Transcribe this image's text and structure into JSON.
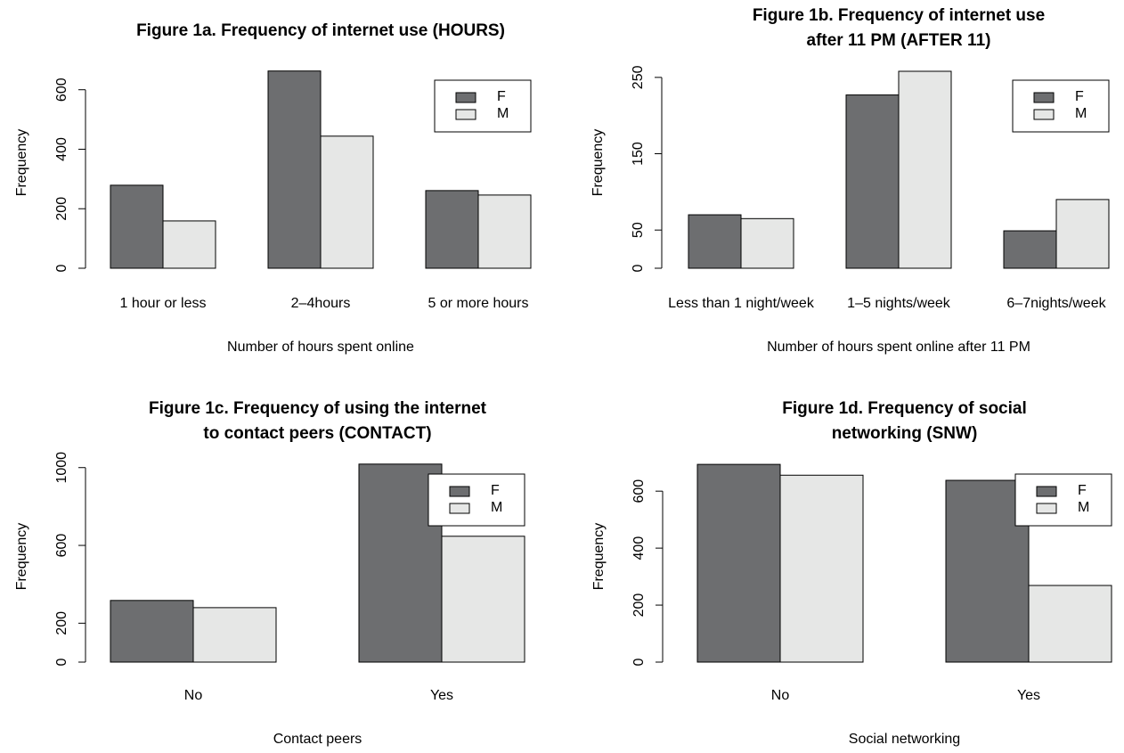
{
  "chart_data": [
    {
      "type": "bar",
      "title": [
        "Figure 1a. Frequency of internet use (HOURS)"
      ],
      "xlabel": "Number of hours spent online",
      "ylabel": "Frequency",
      "categories": [
        "1 hour or less",
        "2–4hours",
        "5 or more hours"
      ],
      "series": [
        {
          "name": "F",
          "color": "#6d6e70",
          "values": [
            279,
            663,
            261
          ]
        },
        {
          "name": "M",
          "color": "#e6e7e6",
          "values": [
            159,
            444,
            246
          ]
        }
      ],
      "ylim": [
        0,
        680
      ],
      "yticks": [
        0,
        200,
        400,
        600
      ],
      "legend": "topright"
    },
    {
      "type": "bar",
      "title": [
        "Figure 1b. Frequency of internet use",
        "after 11 PM (AFTER 11)"
      ],
      "xlabel": "Number of hours spent online after 11 PM",
      "ylabel": "Frequency",
      "categories": [
        "Less than 1 night/week",
        "1–5 nights/week",
        "6–7nights/week"
      ],
      "series": [
        {
          "name": "F",
          "color": "#6d6e70",
          "values": [
            70,
            227,
            49
          ]
        },
        {
          "name": "M",
          "color": "#e6e7e6",
          "values": [
            65,
            258,
            90
          ]
        }
      ],
      "ylim": [
        0,
        265
      ],
      "yticks": [
        0,
        50,
        150,
        250
      ],
      "legend": "topright"
    },
    {
      "type": "bar",
      "title": [
        "Figure 1c. Frequency of using the internet",
        "to contact peers (CONTACT)"
      ],
      "xlabel": "Contact peers",
      "ylabel": "Frequency",
      "categories": [
        "No",
        "Yes"
      ],
      "series": [
        {
          "name": "F",
          "color": "#6d6e70",
          "values": [
            317,
            1018
          ]
        },
        {
          "name": "M",
          "color": "#e6e7e6",
          "values": [
            280,
            647
          ]
        }
      ],
      "ylim": [
        0,
        1040
      ],
      "yticks": [
        0,
        200,
        600,
        1000
      ],
      "legend": "topright"
    },
    {
      "type": "bar",
      "title": [
        "Figure 1d. Frequency of social",
        "networking (SNW)"
      ],
      "xlabel": "Social networking",
      "ylabel": "Frequency",
      "categories": [
        "No",
        "Yes"
      ],
      "series": [
        {
          "name": "F",
          "color": "#6d6e70",
          "values": [
            694,
            638
          ]
        },
        {
          "name": "M",
          "color": "#e6e7e6",
          "values": [
            656,
            269
          ]
        }
      ],
      "ylim": [
        0,
        710
      ],
      "yticks": [
        0,
        200,
        400,
        600
      ],
      "legend": "topright"
    }
  ]
}
